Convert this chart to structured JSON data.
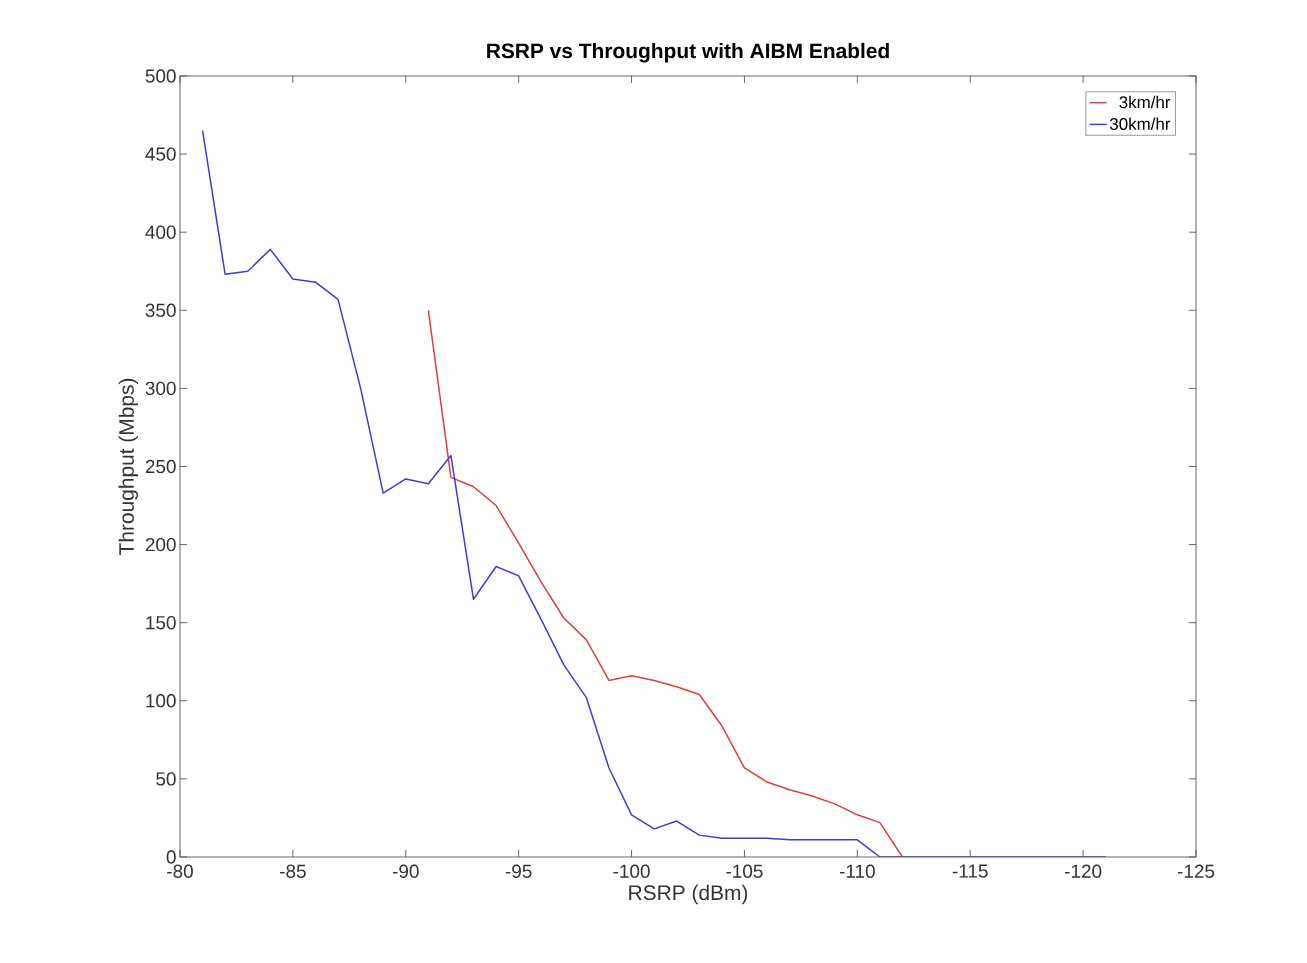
{
  "chart_data": {
    "type": "line",
    "title": "RSRP vs Throughput with AIBM Enabled",
    "xlabel": "RSRP (dBm)",
    "ylabel": "Throughput (Mbps)",
    "xlim": [
      -80,
      -125
    ],
    "ylim": [
      0,
      500
    ],
    "xticks": [
      -80,
      -85,
      -90,
      -95,
      -100,
      -105,
      -110,
      -115,
      -120,
      -125
    ],
    "yticks": [
      0,
      50,
      100,
      150,
      200,
      250,
      300,
      350,
      400,
      450,
      500
    ],
    "grid": false,
    "legend": "top right",
    "line_style": "solid",
    "marker": "none",
    "series": [
      {
        "name": "3km/hr",
        "color": "#e03c3c",
        "x": [
          -91,
          -92,
          -93,
          -94,
          -95,
          -96,
          -97,
          -98,
          -99,
          -100,
          -101,
          -102,
          -103,
          -104,
          -105,
          -106,
          -107,
          -108,
          -109,
          -110,
          -111,
          -112
        ],
        "values": [
          350,
          243,
          237,
          225,
          201,
          176,
          153,
          139,
          113,
          116,
          113,
          109,
          104,
          84,
          57,
          48,
          43,
          39,
          34,
          27,
          22,
          0
        ]
      },
      {
        "name": "30km/hr",
        "color": "#3b3bdb",
        "x": [
          -81,
          -82,
          -83,
          -84,
          -85,
          -86,
          -87,
          -88,
          -89,
          -90,
          -91,
          -92,
          -93,
          -94,
          -95,
          -96,
          -97,
          -98,
          -99,
          -100,
          -101,
          -102,
          -103,
          -104,
          -105,
          -106,
          -107,
          -108,
          -109,
          -110,
          -111,
          -112,
          -113,
          -114,
          -115,
          -116,
          -117,
          -118,
          -119,
          -120,
          -121
        ],
        "values": [
          465,
          373,
          375,
          389,
          370,
          368,
          357,
          300,
          233,
          242,
          239,
          257,
          165,
          186,
          180,
          152,
          123,
          102,
          57,
          27,
          18,
          23,
          14,
          12,
          12,
          12,
          11,
          11,
          11,
          11,
          0,
          0,
          0,
          0,
          0,
          0,
          0,
          0,
          0,
          0,
          0
        ]
      }
    ]
  }
}
